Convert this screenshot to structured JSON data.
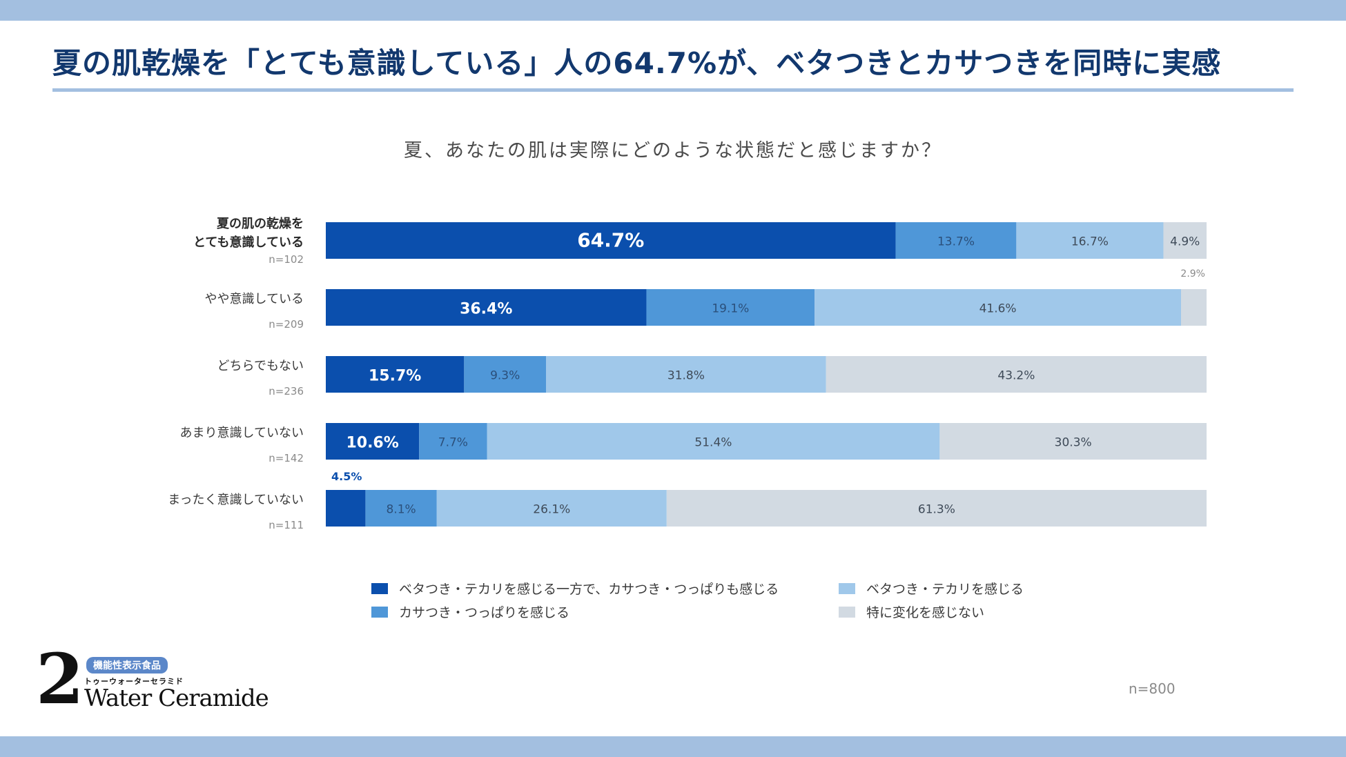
{
  "headline": "夏の肌乾燥を「とても意識している」人の64.7%が、ベタつきとカサつきを同時に実感",
  "colors": {
    "both": "#0b4fad",
    "dry": "#4f97d8",
    "oily": "#a0c8ea",
    "none": "#d2dae2",
    "accent_band": "#a3bfe0",
    "headline": "#12386e"
  },
  "chart_data": {
    "type": "bar",
    "orientation": "horizontal",
    "stacked": true,
    "title": "夏、あなたの肌は実際にどのような状態だと感じますか？",
    "categories": [
      {
        "label_lines": [
          "夏の肌の乾燥を",
          "とても意識している"
        ],
        "n": "n=102",
        "bold": true
      },
      {
        "label_lines": [
          "やや意識している"
        ],
        "n": "n=209",
        "bold": false
      },
      {
        "label_lines": [
          "どちらでもない"
        ],
        "n": "n=236",
        "bold": false
      },
      {
        "label_lines": [
          "あまり意識していない"
        ],
        "n": "n=142",
        "bold": false
      },
      {
        "label_lines": [
          "まったく意識していない"
        ],
        "n": "n=111",
        "bold": false
      }
    ],
    "series": [
      {
        "name": "ベタつき・テカリを感じる一方で、カサつき・つっぱりも感じる",
        "color_key": "both",
        "values": [
          64.7,
          36.4,
          15.7,
          10.6,
          4.5
        ],
        "labels": [
          "64.7%",
          "36.4%",
          "15.7%",
          "10.6%",
          "4.5%"
        ]
      },
      {
        "name": "カサつき・つっぱりを感じる",
        "color_key": "dry",
        "values": [
          13.7,
          19.1,
          9.3,
          7.7,
          8.1
        ],
        "labels": [
          "13.7%",
          "19.1%",
          "9.3%",
          "7.7%",
          "8.1%"
        ]
      },
      {
        "name": "ベタつき・テカリを感じる",
        "color_key": "oily",
        "values": [
          16.7,
          41.6,
          31.8,
          51.4,
          26.1
        ],
        "labels": [
          "16.7%",
          "41.6%",
          "31.8%",
          "51.4%",
          "26.1%"
        ]
      },
      {
        "name": "特に変化を感じない",
        "color_key": "none",
        "values": [
          4.9,
          2.9,
          43.2,
          30.3,
          61.3
        ],
        "labels": [
          "4.9%",
          "2.9%",
          "43.2%",
          "30.3%",
          "61.3%"
        ]
      }
    ],
    "xlim": [
      0,
      100
    ],
    "legend_position": "bottom",
    "grid": false
  },
  "footer": {
    "sample": "n=800"
  },
  "logo": {
    "numeral": "2",
    "badge": "機能性表示食品",
    "kana": "トゥーウォーターセラミド",
    "wordmark": "Water Ceramide"
  }
}
